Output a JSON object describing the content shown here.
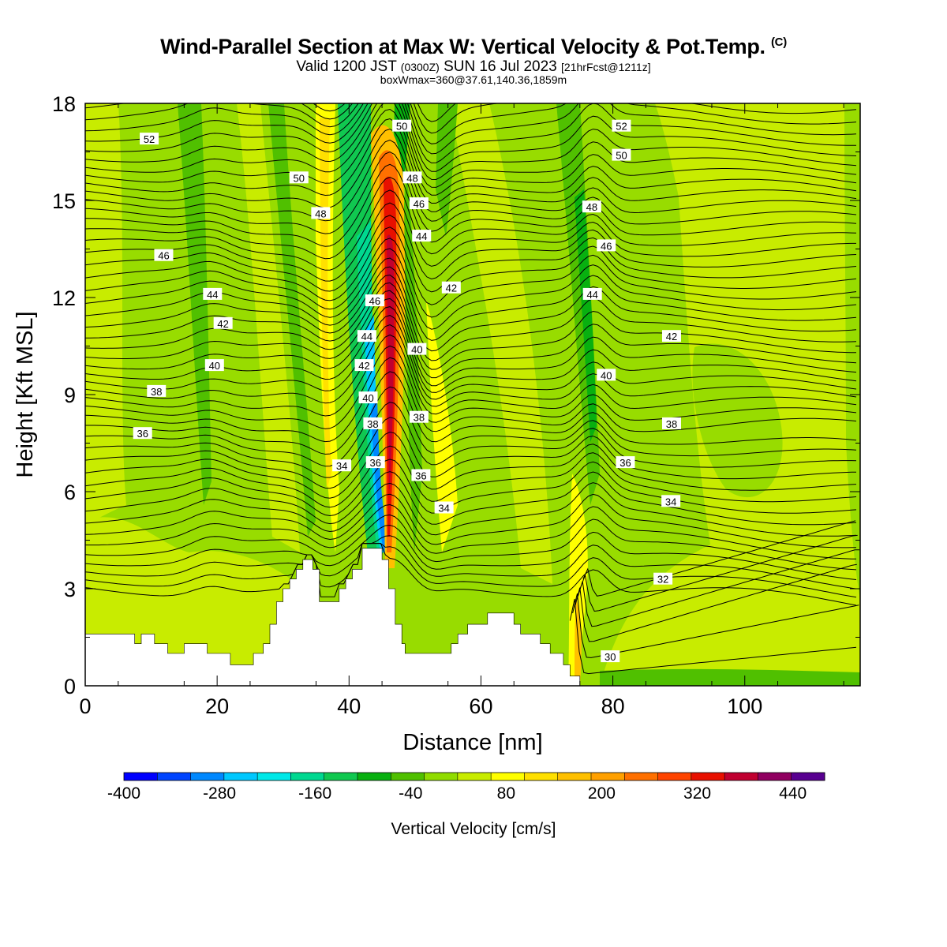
{
  "header": {
    "title_main": "Wind-Parallel Section at Max W: Vertical Velocity & Pot.Temp.",
    "title_tag": "(C)",
    "subtitle_a": "Valid 1200 JST",
    "subtitle_b": "(0300Z)",
    "subtitle_c": "SUN 16 Jul 2023",
    "subtitle_d": "[21hrFcst@1211z]",
    "subtitle_line3": "boxWmax=360@37.61,140.36,1859m"
  },
  "chart_data": {
    "type": "contour",
    "xlabel": "Distance [nm]",
    "ylabel": "Height [Kft MSL]",
    "xlim": [
      0,
      117.5
    ],
    "ylim": [
      0,
      18
    ],
    "x_ticks": [
      0,
      20,
      40,
      60,
      80,
      100
    ],
    "y_ticks": [
      0,
      3,
      6,
      9,
      12,
      15,
      18
    ],
    "fill_field": "Vertical Velocity",
    "colorbar": {
      "label": "Vertical Velocity [cm/s]",
      "range": [
        -400,
        480
      ],
      "interval": 40,
      "tick_values": [
        -400,
        -280,
        -160,
        -40,
        80,
        200,
        320,
        440
      ],
      "colors": [
        "#0000ff",
        "#0044ff",
        "#0088ff",
        "#00c8ff",
        "#00e8e8",
        "#00d890",
        "#10c850",
        "#08b010",
        "#50c000",
        "#90dc00",
        "#c8ec00",
        "#ffff00",
        "#ffe000",
        "#ffc000",
        "#ffa000",
        "#ff7000",
        "#ff4400",
        "#e81000",
        "#c00030",
        "#900060",
        "#580090"
      ]
    },
    "theta_contours": {
      "field": "Potential Temperature",
      "units": "C",
      "levels_labeled": [
        30,
        32,
        34,
        36,
        38,
        40,
        42,
        44,
        46,
        48,
        50,
        52
      ],
      "labels": [
        {
          "text": "52",
          "x": 9.7,
          "y": 16.9
        },
        {
          "text": "50",
          "x": 32.4,
          "y": 15.7
        },
        {
          "text": "48",
          "x": 35.7,
          "y": 14.6
        },
        {
          "text": "46",
          "x": 11.9,
          "y": 13.3
        },
        {
          "text": "44",
          "x": 19.3,
          "y": 12.1
        },
        {
          "text": "42",
          "x": 20.9,
          "y": 11.2
        },
        {
          "text": "40",
          "x": 19.6,
          "y": 9.9
        },
        {
          "text": "38",
          "x": 10.8,
          "y": 9.1
        },
        {
          "text": "36",
          "x": 8.7,
          "y": 7.8
        },
        {
          "text": "34",
          "x": 38.9,
          "y": 6.8
        },
        {
          "text": "50",
          "x": 48.0,
          "y": 17.3
        },
        {
          "text": "48",
          "x": 49.6,
          "y": 15.7
        },
        {
          "text": "46",
          "x": 50.6,
          "y": 14.9
        },
        {
          "text": "44",
          "x": 51.0,
          "y": 13.9
        },
        {
          "text": "42",
          "x": 55.5,
          "y": 12.3
        },
        {
          "text": "46",
          "x": 43.9,
          "y": 11.9
        },
        {
          "text": "44",
          "x": 42.7,
          "y": 10.8
        },
        {
          "text": "42",
          "x": 42.3,
          "y": 9.9
        },
        {
          "text": "40",
          "x": 42.9,
          "y": 8.9
        },
        {
          "text": "38",
          "x": 43.6,
          "y": 8.1
        },
        {
          "text": "36",
          "x": 44.0,
          "y": 6.9
        },
        {
          "text": "40",
          "x": 50.3,
          "y": 10.4
        },
        {
          "text": "38",
          "x": 50.6,
          "y": 8.3
        },
        {
          "text": "36",
          "x": 50.9,
          "y": 6.5
        },
        {
          "text": "34",
          "x": 54.4,
          "y": 5.5
        },
        {
          "text": "52",
          "x": 81.3,
          "y": 17.3
        },
        {
          "text": "50",
          "x": 81.3,
          "y": 16.4
        },
        {
          "text": "48",
          "x": 76.8,
          "y": 14.8
        },
        {
          "text": "46",
          "x": 79.0,
          "y": 13.6
        },
        {
          "text": "44",
          "x": 76.9,
          "y": 12.1
        },
        {
          "text": "42",
          "x": 88.9,
          "y": 10.8
        },
        {
          "text": "40",
          "x": 79.0,
          "y": 9.6
        },
        {
          "text": "38",
          "x": 88.9,
          "y": 8.1
        },
        {
          "text": "36",
          "x": 81.9,
          "y": 6.9
        },
        {
          "text": "34",
          "x": 88.8,
          "y": 5.7
        },
        {
          "text": "32",
          "x": 87.6,
          "y": 3.3
        },
        {
          "text": "30",
          "x": 79.6,
          "y": 0.9
        }
      ]
    },
    "terrain_profile_kft": [
      [
        0,
        1.6
      ],
      [
        7.5,
        1.6
      ],
      [
        7.5,
        1.3
      ],
      [
        8.5,
        1.3
      ],
      [
        8.5,
        1.6
      ],
      [
        10.5,
        1.6
      ],
      [
        10.5,
        1.3
      ],
      [
        12.5,
        1.3
      ],
      [
        12.5,
        1.0
      ],
      [
        15,
        1.0
      ],
      [
        15,
        1.3
      ],
      [
        18.5,
        1.3
      ],
      [
        18.5,
        1.0
      ],
      [
        22,
        1.0
      ],
      [
        22,
        0.65
      ],
      [
        25.5,
        0.65
      ],
      [
        25.5,
        1.0
      ],
      [
        27,
        1.0
      ],
      [
        27,
        1.3
      ],
      [
        28,
        1.3
      ],
      [
        28,
        1.9
      ],
      [
        29,
        1.9
      ],
      [
        29,
        2.6
      ],
      [
        30,
        2.6
      ],
      [
        30,
        3.0
      ],
      [
        31,
        3.0
      ],
      [
        31,
        3.3
      ],
      [
        32,
        3.3
      ],
      [
        32,
        3.6
      ],
      [
        33,
        3.6
      ],
      [
        33,
        3.9
      ],
      [
        34.5,
        3.9
      ],
      [
        34.5,
        3.6
      ],
      [
        35.5,
        3.6
      ],
      [
        35.5,
        2.6
      ],
      [
        38.5,
        2.6
      ],
      [
        38.5,
        3.0
      ],
      [
        39.5,
        3.0
      ],
      [
        39.5,
        3.3
      ],
      [
        40.5,
        3.3
      ],
      [
        40.5,
        3.6
      ],
      [
        42,
        3.6
      ],
      [
        42,
        4.25
      ],
      [
        45,
        4.25
      ],
      [
        45,
        3.9
      ],
      [
        46,
        3.9
      ],
      [
        46,
        3.0
      ],
      [
        47,
        3.0
      ],
      [
        47,
        1.9
      ],
      [
        48,
        1.9
      ],
      [
        48,
        1.3
      ],
      [
        48.5,
        1.3
      ],
      [
        48.5,
        1.0
      ],
      [
        55.5,
        1.0
      ],
      [
        55.5,
        1.3
      ],
      [
        56.5,
        1.3
      ],
      [
        56.5,
        1.6
      ],
      [
        58,
        1.6
      ],
      [
        58,
        1.9
      ],
      [
        61,
        1.9
      ],
      [
        61,
        2.25
      ],
      [
        65,
        2.25
      ],
      [
        65,
        1.9
      ],
      [
        66,
        1.9
      ],
      [
        66,
        1.6
      ],
      [
        69,
        1.6
      ],
      [
        69,
        1.3
      ],
      [
        70.5,
        1.3
      ],
      [
        70.5,
        1.0
      ],
      [
        72.5,
        1.0
      ],
      [
        72.5,
        0.65
      ],
      [
        73.5,
        0.65
      ],
      [
        73.5,
        0.3
      ],
      [
        75,
        0.3
      ],
      [
        75,
        0
      ],
      [
        0,
        0
      ]
    ]
  }
}
